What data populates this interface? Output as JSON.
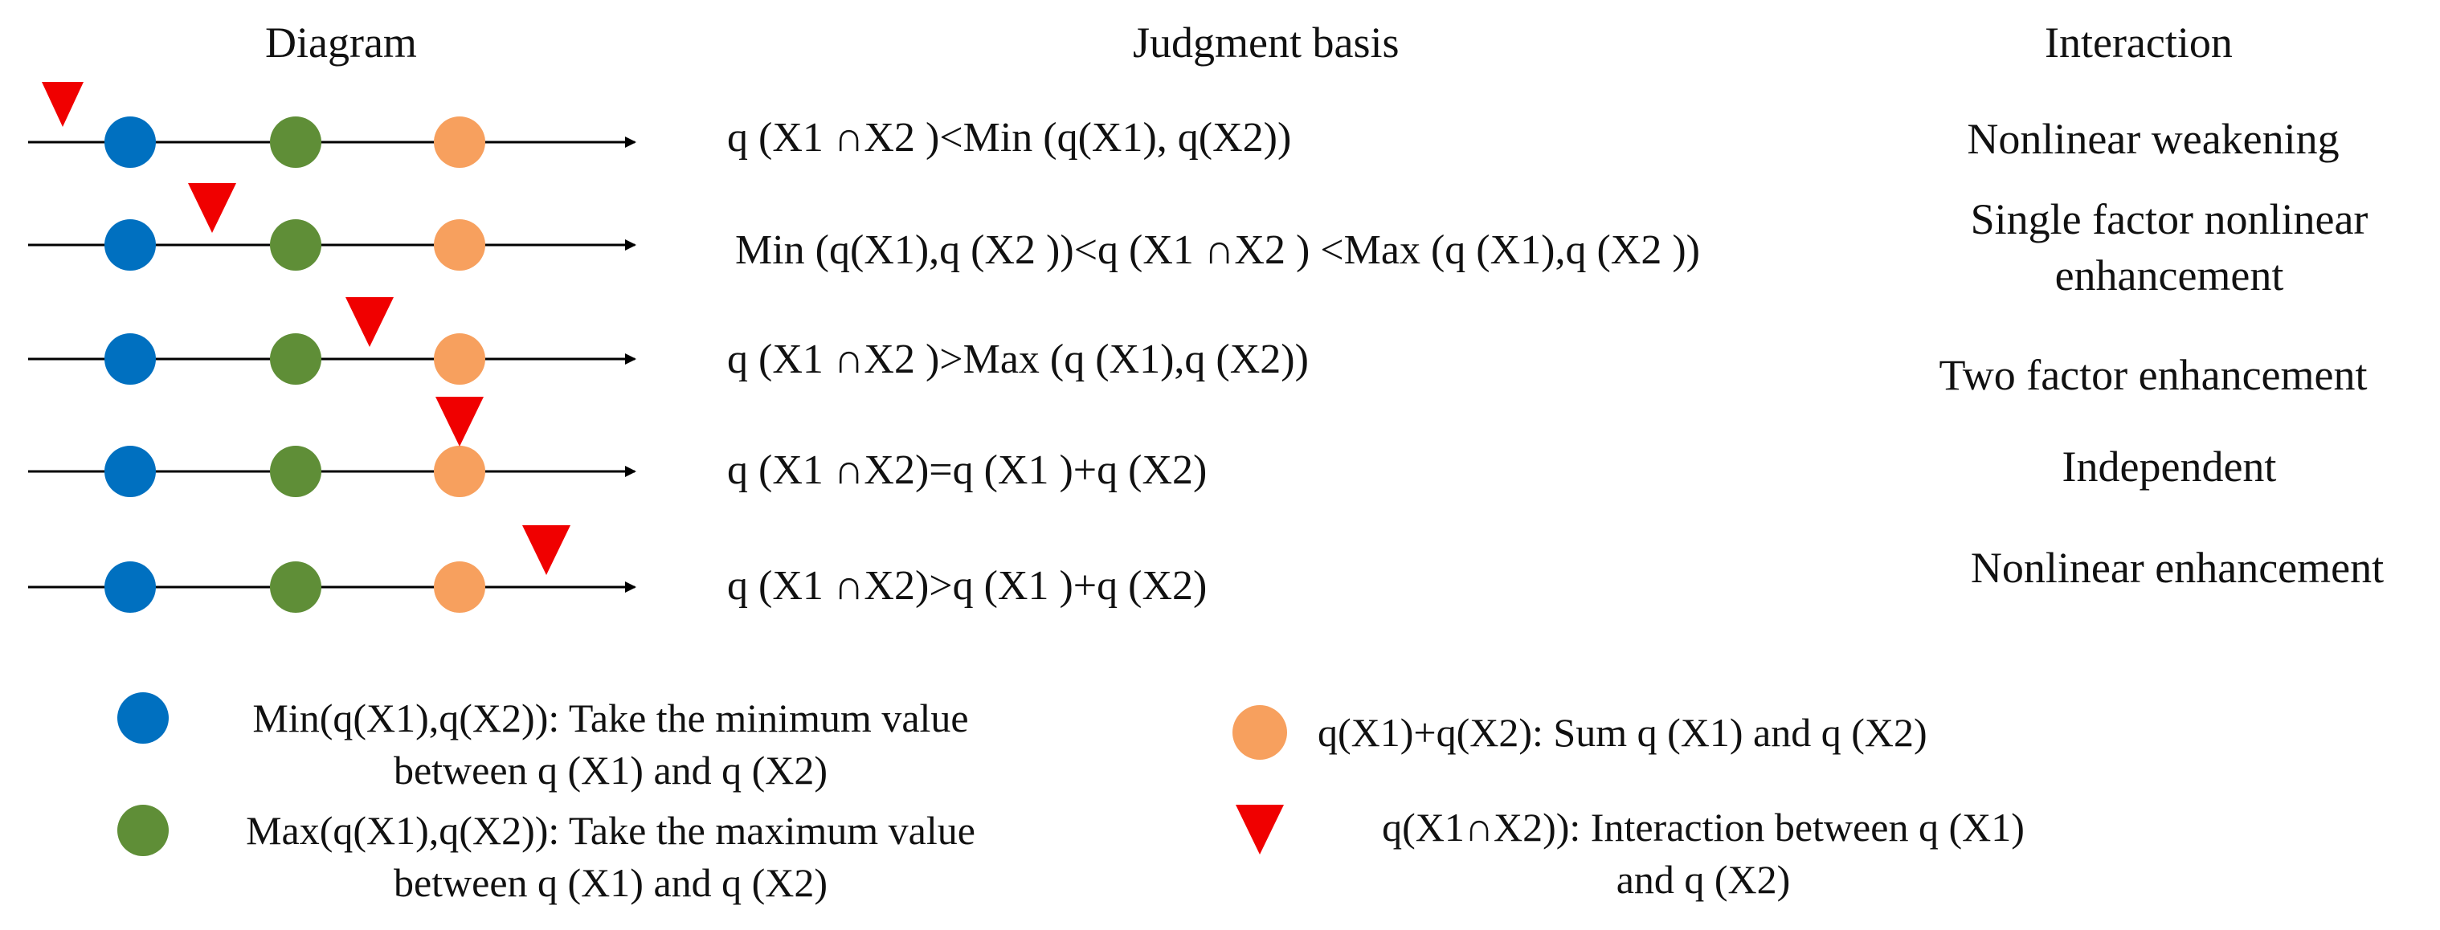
{
  "headers": {
    "diagram": "Diagram",
    "judgment": "Judgment basis",
    "interaction": "Interaction"
  },
  "rows": [
    {
      "formula": "q (X1 ∩X2 )<Min (q(X1), q(X2))",
      "interaction": "Nonlinear weakening"
    },
    {
      "formula": "Min (q(X1),q (X2 ))<q (X1 ∩X2 ) <Max (q (X1),q (X2 ))",
      "interaction_line1": "Single factor nonlinear",
      "interaction_line2": "enhancement"
    },
    {
      "formula": "q (X1 ∩X2 )>Max (q (X1),q (X2))",
      "interaction": "Two factor enhancement"
    },
    {
      "formula": "q (X1 ∩X2)=q (X1 )+q (X2)",
      "interaction": "Independent"
    },
    {
      "formula": "q (X1 ∩X2)>q (X1 )+q (X2)",
      "interaction": "Nonlinear enhancement"
    }
  ],
  "legend": {
    "blue_line1": "Min(q(X1),q(X2)): Take the minimum value",
    "blue_line2": "between q (X1) and q (X2)",
    "green_line1": "Max(q(X1),q(X2)): Take the maximum value",
    "green_line2": "between q (X1) and q (X2)",
    "orange": "q(X1)+q(X2): Sum q (X1) and q (X2)",
    "red_line1": "q(X1∩X2)): Interaction between q (X1)",
    "red_line2": "and q (X2)"
  },
  "colors": {
    "blue": "#0070C0",
    "green": "#5F8E37",
    "orange": "#F7A05E",
    "red": "#F00000",
    "line": "#000000"
  }
}
